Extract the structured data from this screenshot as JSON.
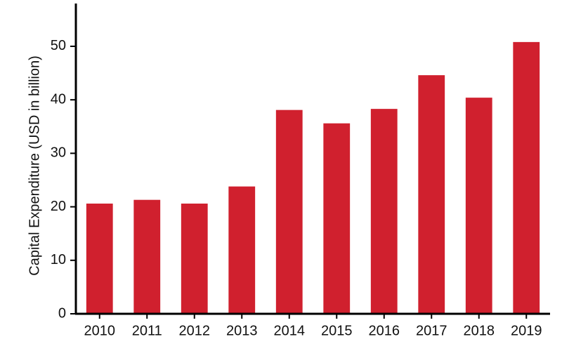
{
  "chart_data": {
    "type": "bar",
    "y_label": "Capital Expenditure (USD in billion)",
    "categories": [
      "2010",
      "2011",
      "2012",
      "2013",
      "2014",
      "2015",
      "2016",
      "2017",
      "2018",
      "2019"
    ],
    "values": [
      20.6,
      21.3,
      20.6,
      23.8,
      38.1,
      35.6,
      38.3,
      44.6,
      40.4,
      50.8
    ],
    "color": "#d0202e",
    "ylim": [
      0,
      58
    ],
    "yticks": [
      0,
      10,
      20,
      30,
      40,
      50
    ],
    "grid": false
  }
}
